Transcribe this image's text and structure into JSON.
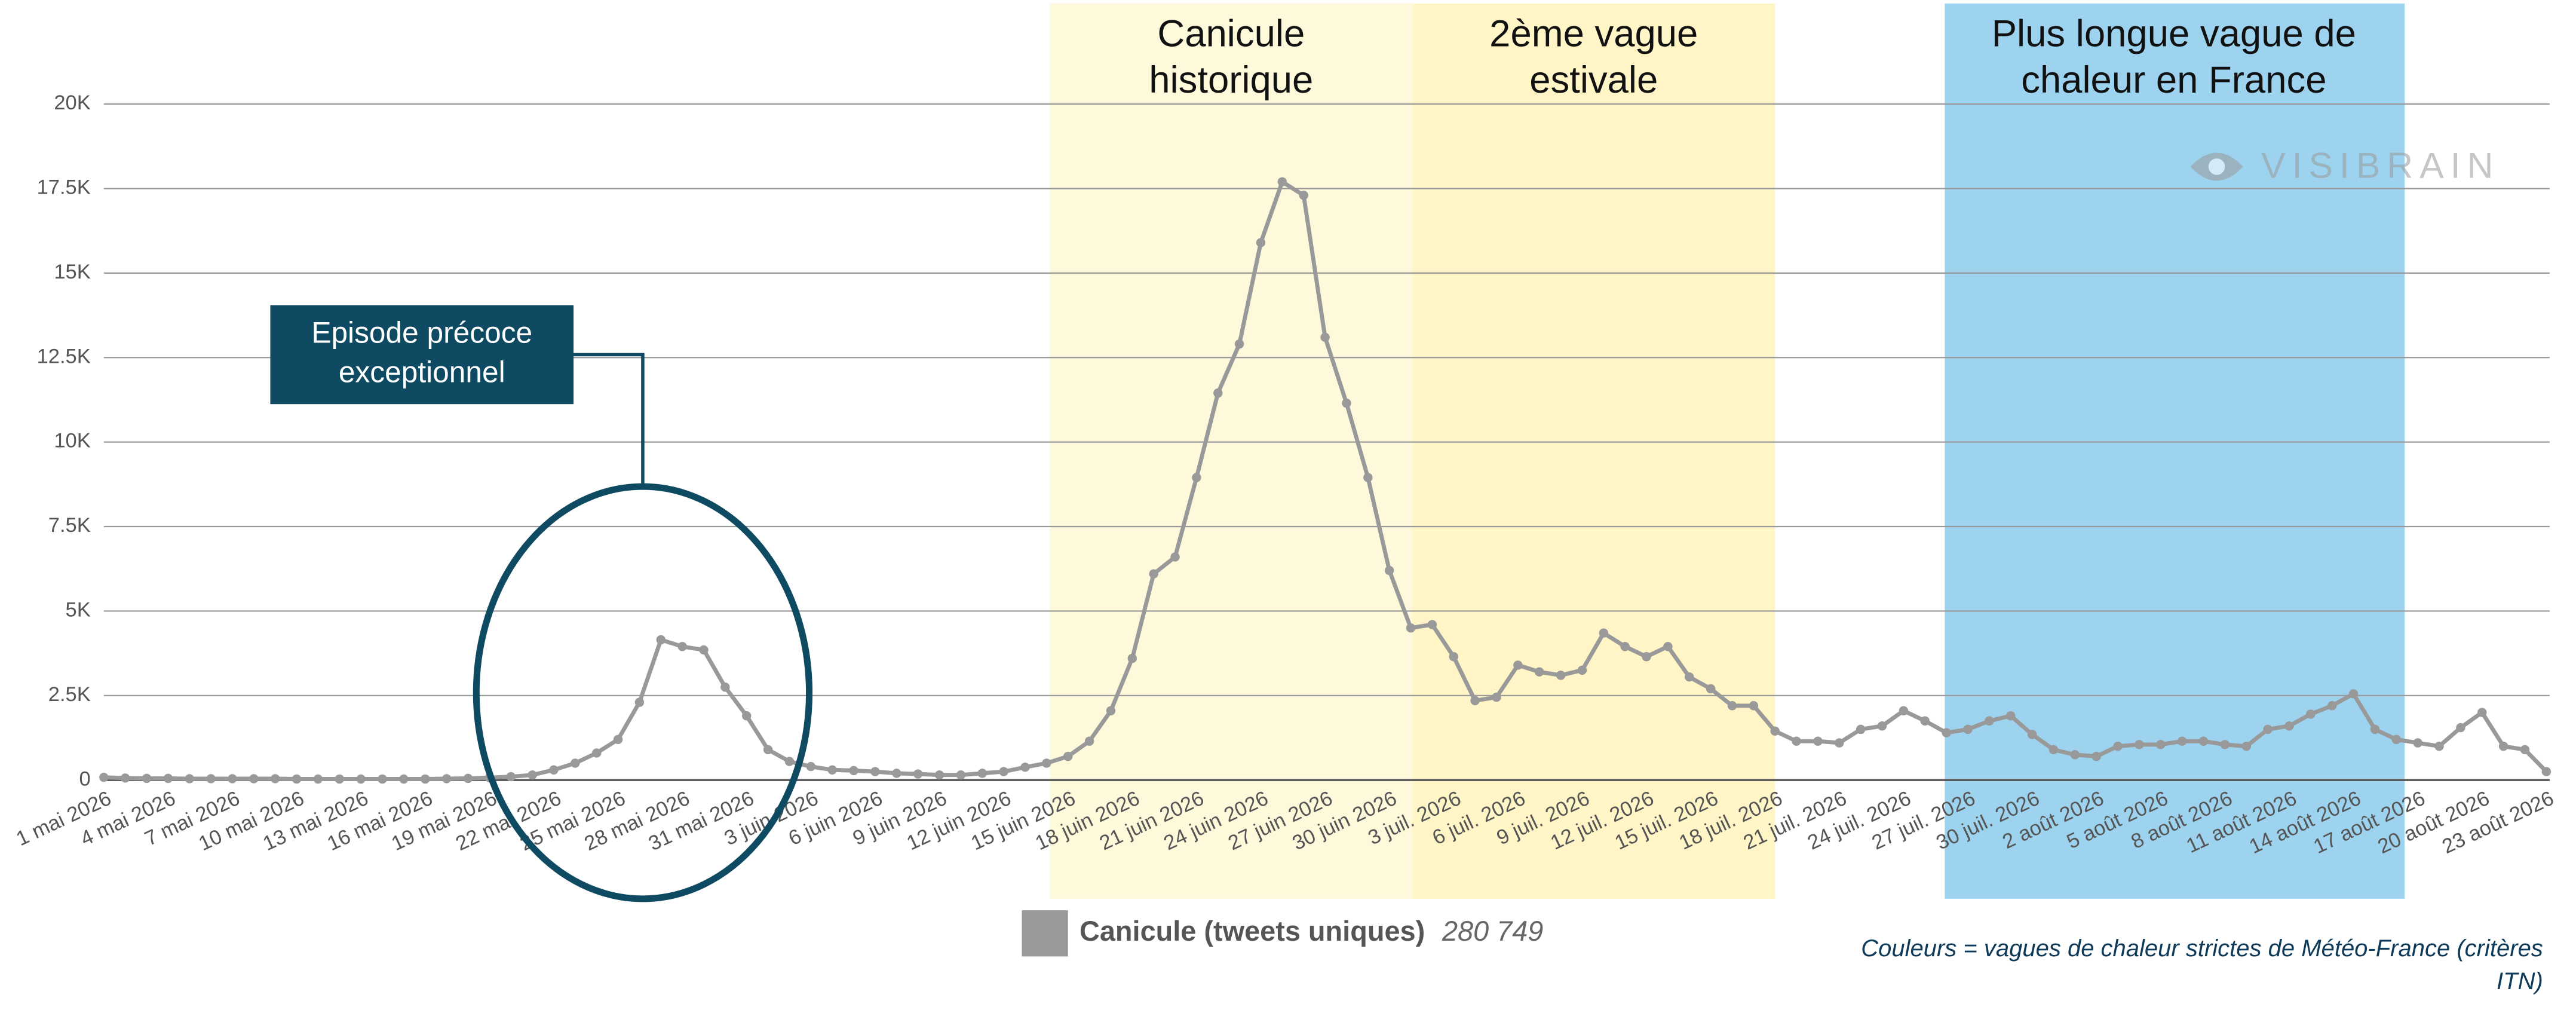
{
  "chart_data": {
    "type": "line",
    "categories": [
      "1 mai 2026",
      null,
      null,
      "4 mai 2026",
      null,
      null,
      "7 mai 2026",
      null,
      null,
      "10 mai 2026",
      null,
      null,
      "13 mai 2026",
      null,
      null,
      "16 mai 2026",
      null,
      null,
      "19 mai 2026",
      null,
      null,
      "22 mai 2026",
      null,
      null,
      "25 mai 2026",
      null,
      null,
      "28 mai 2026",
      null,
      null,
      "31 mai 2026",
      null,
      null,
      "3 juin 2026",
      null,
      null,
      "6 juin 2026",
      null,
      null,
      "9 juin 2026",
      null,
      null,
      "12 juin 2026",
      null,
      null,
      "15 juin 2026",
      null,
      null,
      "18 juin 2026",
      null,
      null,
      "21 juin 2026",
      null,
      null,
      "24 juin 2026",
      null,
      null,
      "27 juin 2026",
      null,
      null,
      "30 juin 2026",
      null,
      null,
      "3 juil. 2026",
      null,
      null,
      "6 juil. 2026",
      null,
      null,
      "9 juil. 2026",
      null,
      null,
      "12 juil. 2026",
      null,
      null,
      "15 juil. 2026",
      null,
      null,
      "18 juil. 2026",
      null,
      null,
      "21 juil. 2026",
      null,
      null,
      "24 juil. 2026",
      null,
      null,
      "27 juil. 2026",
      null,
      null,
      "30 juil. 2026",
      null,
      null,
      "2 août 2026",
      null,
      null,
      "5 août 2026",
      null,
      null,
      "8 août 2026",
      null,
      null,
      "11 août 2026",
      null,
      null,
      "14 août 2026",
      null,
      null,
      "17 août 2026",
      null,
      null,
      "20 août 2026",
      null,
      null,
      "23 août 2026"
    ],
    "series": [
      {
        "name": "Canicule (tweets uniques)",
        "color": "#999999",
        "values": [
          80,
          60,
          50,
          50,
          40,
          40,
          40,
          40,
          40,
          30,
          30,
          30,
          30,
          30,
          30,
          30,
          40,
          50,
          70,
          100,
          150,
          300,
          500,
          800,
          1200,
          2300,
          4150,
          3950,
          3850,
          2750,
          1900,
          900,
          550,
          400,
          300,
          280,
          250,
          200,
          180,
          150,
          150,
          200,
          250,
          380,
          500,
          700,
          1150,
          2050,
          3600,
          6100,
          6600,
          8950,
          11450,
          12900,
          15900,
          17700,
          17300,
          13100,
          11150,
          8950,
          6200,
          4500,
          4600,
          3650,
          2350,
          2450,
          3400,
          3200,
          3100,
          3250,
          4350,
          3950,
          3650,
          3950,
          3050,
          2700,
          2200,
          2200,
          1450,
          1150,
          1150,
          1100,
          1500,
          1600,
          2050,
          1750,
          1400,
          1500,
          1750,
          1900,
          1350,
          900,
          750,
          700,
          1000,
          1050,
          1050,
          1150,
          1150,
          1050,
          1000,
          1500,
          1600,
          1950,
          2200,
          2550,
          1500,
          1200,
          1100,
          1000,
          1550,
          2000,
          1000,
          900,
          250
        ]
      }
    ],
    "legend_total": "280 749",
    "ylim": [
      0,
      20000
    ],
    "yticks": [
      0,
      {
        "value": 2500,
        "label": "2.5K"
      },
      {
        "value": 5000,
        "label": "5K"
      },
      {
        "value": 7500,
        "label": "7.5K"
      },
      {
        "value": 10000,
        "label": "10K"
      },
      {
        "value": 12500,
        "label": "12.5K"
      },
      {
        "value": 15000,
        "label": "15K"
      },
      {
        "value": 17500,
        "label": "17.5K"
      },
      {
        "value": 20000,
        "label": "20K"
      }
    ],
    "grid": true,
    "bands": [
      {
        "lines": [
          "Canicule",
          "historique"
        ],
        "color": "#fff9dc"
      },
      {
        "lines": [
          "2ème vague",
          "estivale"
        ],
        "color": "#fff5c6"
      },
      {
        "lines": [
          "Plus longue vague de",
          "chaleur en France"
        ],
        "color": "#9dd3ee"
      }
    ],
    "callout": {
      "lines": [
        "Episode précoce",
        "exceptionnel"
      ],
      "color": "#0e4a62"
    },
    "watermark": "VISIBRAIN",
    "footnote": [
      "Couleurs = vagues de chaleur strictes de Météo-France (critères",
      "ITN)"
    ]
  }
}
